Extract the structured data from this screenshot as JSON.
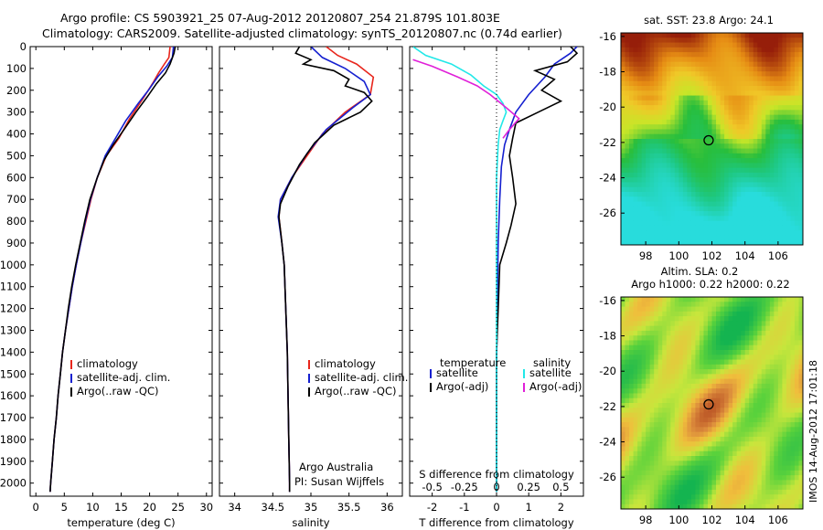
{
  "header": {
    "line1": "Argo profile: CS 5903921_25 07-Aug-2012 20120807_254 21.879S 101.803E",
    "line2": "Climatology: CARS2009. Satellite-adjusted climatology: synTS_20120807.nc (0.74d earlier)"
  },
  "side_label": "IMOS 14-Aug-2012 17:01:18",
  "colors": {
    "climatology": "#e8261c",
    "satellite_adj": "#1520d0",
    "argo": "#000000",
    "sat_diff_salinity": "#22e8e8",
    "argo_diff_salinity": "#e020d8"
  },
  "chart_data": [
    {
      "type": "line",
      "panel": "temperature",
      "xlabel": "temperature (deg C)",
      "ylabel": "",
      "xlim": [
        -1,
        31
      ],
      "ylim": [
        2060,
        0
      ],
      "xticks": [
        0,
        5,
        10,
        15,
        20,
        25,
        30
      ],
      "yticks": [
        0,
        100,
        200,
        300,
        400,
        500,
        600,
        700,
        800,
        900,
        1000,
        1100,
        1200,
        1300,
        1400,
        1500,
        1600,
        1700,
        1800,
        1900,
        2000
      ],
      "legend": [
        "climatology",
        "satellite-adj. clim.",
        "Argo(..raw -QC)"
      ],
      "series": [
        {
          "name": "climatology",
          "color": "#e8261c",
          "points": [
            [
              23.6,
              0
            ],
            [
              23.4,
              50
            ],
            [
              22.6,
              80
            ],
            [
              21.6,
              120
            ],
            [
              20.5,
              170
            ],
            [
              18.8,
              240
            ],
            [
              16.5,
              330
            ],
            [
              14.6,
              420
            ],
            [
              12.4,
              500
            ],
            [
              10.8,
              600
            ],
            [
              9.7,
              700
            ],
            [
              8.8,
              800
            ],
            [
              7.9,
              900
            ],
            [
              7.1,
              1000
            ],
            [
              6.4,
              1100
            ],
            [
              5.8,
              1200
            ],
            [
              5.2,
              1300
            ],
            [
              4.7,
              1400
            ],
            [
              4.3,
              1500
            ],
            [
              3.9,
              1600
            ],
            [
              3.6,
              1700
            ],
            [
              3.2,
              1800
            ],
            [
              2.9,
              1900
            ],
            [
              2.6,
              2000
            ],
            [
              2.5,
              2040
            ]
          ]
        },
        {
          "name": "satellite-adj. clim.",
          "color": "#1520d0",
          "points": [
            [
              24.2,
              0
            ],
            [
              24.0,
              50
            ],
            [
              23.0,
              90
            ],
            [
              21.4,
              140
            ],
            [
              19.8,
              200
            ],
            [
              18.0,
              260
            ],
            [
              15.8,
              340
            ],
            [
              14.0,
              420
            ],
            [
              12.2,
              500
            ],
            [
              10.8,
              600
            ],
            [
              9.6,
              700
            ],
            [
              8.7,
              800
            ],
            [
              7.9,
              900
            ],
            [
              7.1,
              1000
            ],
            [
              6.4,
              1100
            ],
            [
              5.8,
              1200
            ],
            [
              5.2,
              1300
            ],
            [
              4.7,
              1400
            ],
            [
              4.3,
              1500
            ],
            [
              3.9,
              1600
            ],
            [
              3.6,
              1700
            ],
            [
              3.2,
              1800
            ],
            [
              2.9,
              1900
            ],
            [
              2.6,
              2000
            ],
            [
              2.5,
              2040
            ]
          ]
        },
        {
          "name": "Argo(..raw -QC)",
          "color": "#000000",
          "points": [
            [
              24.5,
              0
            ],
            [
              24.3,
              30
            ],
            [
              23.6,
              80
            ],
            [
              22.8,
              120
            ],
            [
              21.2,
              170
            ],
            [
              19.6,
              230
            ],
            [
              17.6,
              300
            ],
            [
              15.5,
              380
            ],
            [
              13.6,
              450
            ],
            [
              12.0,
              520
            ],
            [
              10.8,
              600
            ],
            [
              9.5,
              700
            ],
            [
              8.6,
              800
            ],
            [
              7.8,
              900
            ],
            [
              7.0,
              1000
            ],
            [
              6.3,
              1100
            ],
            [
              5.7,
              1200
            ],
            [
              5.2,
              1300
            ],
            [
              4.7,
              1400
            ],
            [
              4.3,
              1500
            ],
            [
              3.9,
              1600
            ],
            [
              3.6,
              1700
            ],
            [
              3.2,
              1800
            ],
            [
              2.9,
              1900
            ],
            [
              2.6,
              2000
            ],
            [
              2.5,
              2040
            ]
          ]
        }
      ]
    },
    {
      "type": "line",
      "panel": "salinity",
      "xlabel": "salinity",
      "xlim": [
        33.8,
        36.2
      ],
      "ylim": [
        2060,
        0
      ],
      "xticks": [
        34,
        34.5,
        35,
        35.5,
        36
      ],
      "legend": [
        "climatology",
        "satellite-adj. clim.",
        "Argo(..raw -QC)"
      ],
      "annotations": [
        "Argo Australia",
        "PI: Susan Wijffels"
      ],
      "series": [
        {
          "name": "climatology",
          "color": "#e8261c",
          "points": [
            [
              35.2,
              0
            ],
            [
              35.35,
              40
            ],
            [
              35.6,
              80
            ],
            [
              35.82,
              140
            ],
            [
              35.78,
              220
            ],
            [
              35.45,
              300
            ],
            [
              35.15,
              400
            ],
            [
              34.95,
              500
            ],
            [
              34.75,
              600
            ],
            [
              34.6,
              700
            ],
            [
              34.58,
              780
            ],
            [
              34.62,
              900
            ],
            [
              34.65,
              1000
            ],
            [
              34.67,
              1200
            ],
            [
              34.69,
              1400
            ],
            [
              34.7,
              1600
            ],
            [
              34.71,
              1800
            ],
            [
              34.72,
              2000
            ],
            [
              34.72,
              2040
            ]
          ]
        },
        {
          "name": "satellite-adj. clim.",
          "color": "#1520d0",
          "points": [
            [
              35.0,
              0
            ],
            [
              35.15,
              50
            ],
            [
              35.45,
              100
            ],
            [
              35.7,
              160
            ],
            [
              35.78,
              220
            ],
            [
              35.55,
              280
            ],
            [
              35.2,
              380
            ],
            [
              34.95,
              490
            ],
            [
              34.75,
              600
            ],
            [
              34.6,
              700
            ],
            [
              34.57,
              780
            ],
            [
              34.62,
              900
            ],
            [
              34.65,
              1000
            ],
            [
              34.67,
              1200
            ],
            [
              34.69,
              1400
            ],
            [
              34.7,
              1600
            ],
            [
              34.71,
              1800
            ],
            [
              34.72,
              2000
            ],
            [
              34.72,
              2040
            ]
          ]
        },
        {
          "name": "Argo(..raw -QC)",
          "color": "#000000",
          "points": [
            [
              34.85,
              0
            ],
            [
              34.8,
              30
            ],
            [
              35.0,
              60
            ],
            [
              34.9,
              80
            ],
            [
              35.3,
              110
            ],
            [
              35.5,
              150
            ],
            [
              35.45,
              180
            ],
            [
              35.7,
              210
            ],
            [
              35.8,
              250
            ],
            [
              35.65,
              300
            ],
            [
              35.3,
              360
            ],
            [
              35.05,
              440
            ],
            [
              34.85,
              540
            ],
            [
              34.7,
              640
            ],
            [
              34.6,
              720
            ],
            [
              34.58,
              780
            ],
            [
              34.62,
              900
            ],
            [
              34.65,
              1000
            ],
            [
              34.67,
              1200
            ],
            [
              34.69,
              1400
            ],
            [
              34.7,
              1600
            ],
            [
              34.71,
              1800
            ],
            [
              34.72,
              2000
            ],
            [
              34.72,
              2040
            ]
          ]
        }
      ]
    },
    {
      "type": "line",
      "panel": "difference",
      "xlabel": "T difference from climatology",
      "xlabel_top": "S difference from climatology",
      "xlim": [
        -2.7,
        2.7
      ],
      "ylim": [
        2060,
        0
      ],
      "xticks_T": [
        -2,
        -1,
        0,
        1,
        2
      ],
      "xticks_S_labels": [
        "-0.5",
        "-0.25",
        "0",
        "0.25",
        "0.5"
      ],
      "legend": {
        "temperature": [
          "satellite",
          "Argo(-adj)"
        ],
        "salinity": [
          "satellite",
          "Argo(-adj)"
        ]
      },
      "series": [
        {
          "name": "satellite",
          "group": "temperature",
          "color": "#1520d0",
          "points": [
            [
              2.5,
              0
            ],
            [
              2.3,
              30
            ],
            [
              1.8,
              80
            ],
            [
              1.5,
              140
            ],
            [
              1.0,
              220
            ],
            [
              0.6,
              300
            ],
            [
              0.4,
              380
            ],
            [
              0.25,
              450
            ],
            [
              0.15,
              550
            ],
            [
              0.1,
              700
            ],
            [
              0.05,
              900
            ],
            [
              0.02,
              1200
            ],
            [
              0,
              1500
            ],
            [
              0,
              2040
            ]
          ]
        },
        {
          "name": "Argo(-adj)",
          "group": "temperature",
          "color": "#000000",
          "points": [
            [
              2.3,
              0
            ],
            [
              2.5,
              30
            ],
            [
              2.2,
              70
            ],
            [
              1.2,
              110
            ],
            [
              1.8,
              150
            ],
            [
              1.4,
              200
            ],
            [
              2.0,
              250
            ],
            [
              1.3,
              300
            ],
            [
              0.6,
              350
            ],
            [
              0.5,
              420
            ],
            [
              0.4,
              500
            ],
            [
              0.5,
              600
            ],
            [
              0.6,
              720
            ],
            [
              0.45,
              820
            ],
            [
              0.3,
              900
            ],
            [
              0.1,
              1000
            ],
            [
              0.05,
              1200
            ],
            [
              0,
              1400
            ],
            [
              0,
              2040
            ]
          ]
        },
        {
          "name": "satellite",
          "group": "salinity",
          "color": "#22e8e8",
          "points": [
            [
              -2.6,
              0
            ],
            [
              -2.2,
              40
            ],
            [
              -1.4,
              80
            ],
            [
              -0.8,
              130
            ],
            [
              -0.4,
              180
            ],
            [
              0,
              220
            ],
            [
              0.2,
              260
            ],
            [
              0.3,
              300
            ],
            [
              0.2,
              340
            ],
            [
              0.1,
              380
            ],
            [
              0.05,
              450
            ],
            [
              0,
              600
            ],
            [
              0,
              2040
            ]
          ]
        },
        {
          "name": "Argo(-adj)",
          "group": "salinity",
          "color": "#e020d8",
          "points": [
            [
              -2.6,
              60
            ],
            [
              -2.0,
              90
            ],
            [
              -1.2,
              140
            ],
            [
              -0.6,
              180
            ],
            [
              -0.2,
              220
            ],
            [
              0.3,
              280
            ],
            [
              0.7,
              330
            ],
            [
              0.4,
              380
            ],
            [
              0.2,
              420
            ]
          ]
        }
      ]
    },
    {
      "type": "heatmap",
      "panel": "sst_map",
      "title": "sat. SST: 23.8 Argo: 24.1",
      "xticks": [
        98,
        100,
        102,
        104,
        106
      ],
      "yticks": [
        -16,
        -18,
        -20,
        -22,
        -24,
        -26
      ],
      "xlim": [
        96.5,
        107.5
      ],
      "ylim": [
        -27.8,
        -15.8
      ],
      "marker": {
        "lon": 101.803,
        "lat": -21.879
      }
    },
    {
      "type": "heatmap",
      "panel": "sla_map",
      "title": "Altim. SLA: 0.2",
      "subtitle": "Argo h1000: 0.22 h2000: 0.22",
      "xticks": [
        98,
        100,
        102,
        104,
        106
      ],
      "yticks": [
        -16,
        -18,
        -20,
        -22,
        -24,
        -26
      ],
      "xlim": [
        96.5,
        107.5
      ],
      "ylim": [
        -27.8,
        -15.8
      ],
      "marker": {
        "lon": 101.803,
        "lat": -21.879
      }
    }
  ]
}
